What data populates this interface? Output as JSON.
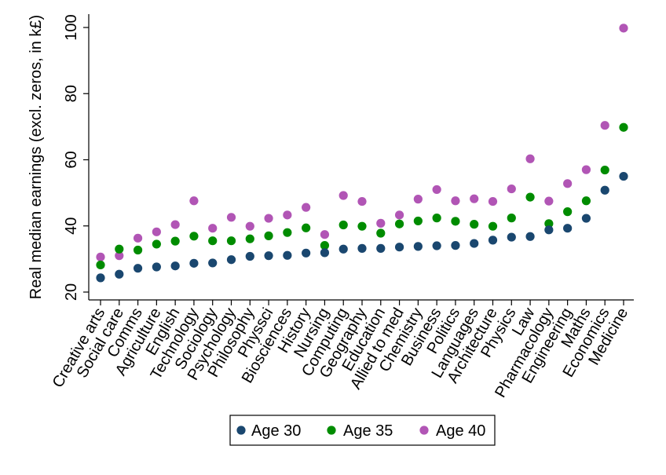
{
  "chart_data": {
    "type": "scatter",
    "title": "",
    "xlabel": "",
    "ylabel": "Real median earnings (excl. zeros, in k£)",
    "ylim": [
      20,
      102
    ],
    "yticks": [
      20,
      40,
      60,
      80,
      100
    ],
    "grid": false,
    "legend_position": "bottom",
    "categories": [
      "Creative arts",
      "Social care",
      "Comms",
      "Agriculture",
      "English",
      "Technology",
      "Sociology",
      "Psychology",
      "Philosophy",
      "Physsci",
      "Biosciences",
      "History",
      "Nursing",
      "Computing",
      "Geography",
      "Education",
      "Allied to med",
      "Chemistry",
      "Business",
      "Politics",
      "Languages",
      "Architecture",
      "Physics",
      "Law",
      "Pharmacology",
      "Engineering",
      "Maths",
      "Economics",
      "Medicine"
    ],
    "series": [
      {
        "name": "Age 30",
        "color": "#1a476f",
        "values": [
          24.3,
          25.4,
          27.2,
          27.6,
          27.9,
          28.7,
          28.8,
          29.8,
          30.8,
          31.0,
          31.1,
          31.8,
          31.9,
          33.0,
          33.2,
          33.2,
          33.6,
          33.8,
          34.0,
          34.1,
          34.7,
          35.7,
          36.6,
          36.8,
          38.8,
          39.3,
          42.3,
          50.8,
          55.0
        ]
      },
      {
        "name": "Age 35",
        "color": "#008c00",
        "values": [
          28.2,
          33.0,
          32.7,
          34.5,
          35.4,
          36.9,
          35.5,
          35.5,
          36.1,
          37.0,
          38.0,
          39.4,
          34.1,
          40.3,
          39.9,
          37.8,
          40.6,
          41.5,
          42.4,
          41.4,
          40.5,
          39.9,
          42.4,
          48.7,
          40.7,
          44.3,
          47.6,
          56.9,
          69.8
        ]
      },
      {
        "name": "Age 40",
        "color": "#b155b5",
        "values": [
          30.6,
          31.0,
          36.3,
          38.2,
          40.4,
          47.6,
          39.3,
          42.6,
          39.9,
          42.3,
          43.3,
          45.6,
          37.4,
          49.2,
          47.4,
          40.8,
          43.3,
          48.1,
          51.0,
          47.6,
          48.2,
          47.4,
          51.2,
          60.3,
          47.5,
          52.8,
          57.0,
          70.4,
          99.8
        ]
      }
    ]
  }
}
